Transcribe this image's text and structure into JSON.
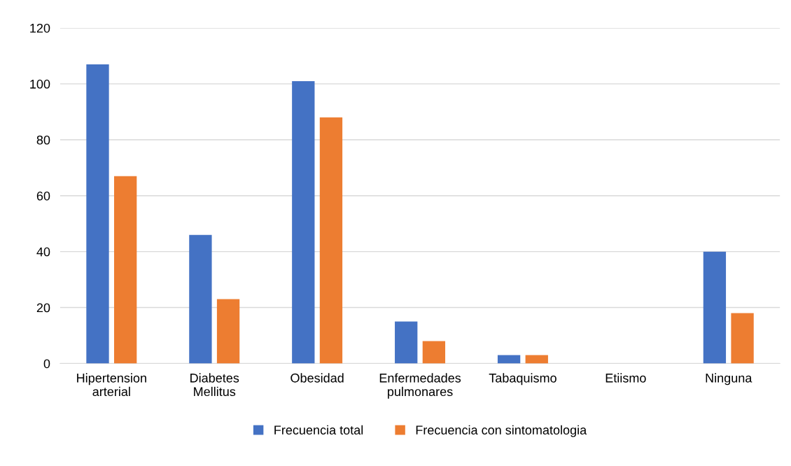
{
  "chart_data": {
    "type": "bar",
    "categories": [
      "Hipertension\narterial",
      "Diabetes\nMellitus",
      "Obesidad",
      "Enfermedades\npulmonares",
      "Tabaquismo",
      "Etiismo",
      "Ninguna"
    ],
    "series": [
      {
        "name": "Frecuencia total",
        "color": "#4472c4",
        "values": [
          107,
          46,
          101,
          15,
          3,
          0,
          40
        ]
      },
      {
        "name": "Frecuencia con sintomatologia",
        "color": "#ed7d31",
        "values": [
          67,
          23,
          88,
          8,
          3,
          0,
          18
        ]
      }
    ],
    "ylim": [
      0,
      120
    ],
    "yticks": [
      0,
      20,
      40,
      60,
      80,
      100,
      120
    ],
    "grid": "y",
    "legend": "bottom"
  }
}
